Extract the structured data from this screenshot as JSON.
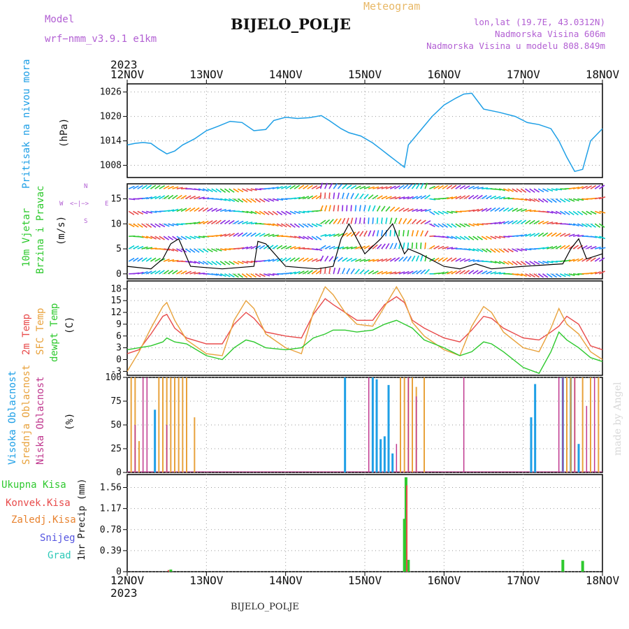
{
  "header": {
    "model_label": "Model",
    "model_name": "wrf−nmm_v3.9.1  e1km",
    "product": "Meteogram",
    "station": "BIJELO_POLJE",
    "lonlat": "lon,lat (19.7E, 43.0312N)",
    "elevation": "Nadmorska Visina 606m",
    "model_elevation": "Nadmorska Visina u modelu 808.849m",
    "watermark": "made by Angel",
    "footer_station": "BIJELO_POLJE"
  },
  "time_axis": {
    "year_top": "2023",
    "year_bottom": "2023",
    "labels": [
      "12NOV",
      "13NOV",
      "14NOV",
      "15NOV",
      "16NOV",
      "17NOV",
      "18NOV"
    ]
  },
  "panel_labels": {
    "pressure": {
      "title": "Pritisak na nivou mora",
      "unit": "(hPa)"
    },
    "wind": {
      "title1": "10m Vjetar",
      "title2": "Brzina i Pravac",
      "unit": "(m/s)",
      "compass_n": "N",
      "compass_s": "S",
      "compass_e": "E",
      "compass_w": "W"
    },
    "temp": {
      "t2m": "2m Temp",
      "sfc": "SFC Temp",
      "dew": "dewpt Temp",
      "unit": "(C)"
    },
    "cloud": {
      "high": "Visoka Oblacnost",
      "mid": "Srednja Oblacnost",
      "low": "Niska Oblacnost",
      "unit": "(%)"
    },
    "precip": {
      "total": "Ukupna Kisa",
      "conv": "Konvek.Kisa",
      "frozen": "Zaledj.Kisa",
      "snow": "Snijeg",
      "hail": "Grad",
      "unit": "1hr Precip (mm)"
    }
  },
  "colors": {
    "pressure": "#1e9fe6",
    "t2m": "#e84b4b",
    "sfc": "#e8a23c",
    "dew": "#2ec92e",
    "high_cloud": "#1e9fe6",
    "mid_cloud": "#e8a23c",
    "low_cloud": "#c0398f",
    "precip_total": "#2ec92e",
    "precip_conv": "#e84b4b",
    "precip_frozen": "#e8822e",
    "snow": "#5454e0",
    "hail": "#2ec9b8",
    "wind_label": "#2ec92e",
    "pressure_label": "#1e9fe6",
    "title_purple": "#b25fd3"
  },
  "chart_data": [
    {
      "type": "line",
      "id": "pressure",
      "ylabel": "Pritisak na nivou mora (hPa)",
      "yticks": [
        "1008",
        "1014",
        "1020",
        "1026"
      ],
      "ylim": [
        1005,
        1028
      ],
      "x_days": [
        0.0,
        0.1,
        0.2,
        0.3,
        0.4,
        0.5,
        0.6,
        0.7,
        0.85,
        1.0,
        1.15,
        1.3,
        1.45,
        1.6,
        1.75,
        1.85,
        2.0,
        2.15,
        2.3,
        2.45,
        2.55,
        2.7,
        2.8,
        2.95,
        3.1,
        3.2,
        3.3,
        3.4,
        3.5,
        3.55,
        3.7,
        3.85,
        4.0,
        4.15,
        4.25,
        4.35,
        4.5,
        4.7,
        4.9,
        5.05,
        5.2,
        5.35,
        5.45,
        5.55,
        5.65,
        5.75,
        5.85,
        6.0
      ],
      "values": [
        1013.0,
        1013.4,
        1013.6,
        1013.4,
        1012.0,
        1010.8,
        1011.5,
        1013.0,
        1014.5,
        1016.5,
        1017.6,
        1018.8,
        1018.5,
        1016.5,
        1016.8,
        1019.0,
        1019.8,
        1019.5,
        1019.7,
        1020.2,
        1019.0,
        1017.0,
        1016.0,
        1015.2,
        1013.5,
        1012.0,
        1010.5,
        1009.0,
        1007.5,
        1013.0,
        1016.5,
        1020.0,
        1022.8,
        1024.5,
        1025.5,
        1025.7,
        1021.8,
        1021.0,
        1020.0,
        1018.5,
        1018.0,
        1017.0,
        1014.0,
        1010.0,
        1006.5,
        1007.0,
        1014.0,
        1017.0
      ]
    },
    {
      "type": "line",
      "id": "wind",
      "ylabel": "10m Vjetar Brzina i Pravac (m/s)",
      "yticks": [
        "0",
        "5",
        "10",
        "15"
      ],
      "ylim": [
        -1,
        18
      ],
      "series": [
        {
          "name": "speed",
          "x": [
            0.0,
            0.3,
            0.45,
            0.55,
            0.65,
            0.8,
            1.2,
            1.6,
            1.65,
            1.75,
            2.0,
            2.4,
            2.6,
            2.7,
            2.8,
            3.0,
            3.2,
            3.35,
            3.5,
            3.55,
            3.7,
            4.0,
            4.2,
            4.4,
            4.6,
            5.0,
            5.5,
            5.6,
            5.7,
            5.8,
            6.0
          ],
          "values": [
            1.5,
            1.0,
            3.0,
            6.0,
            7.0,
            1.5,
            1.0,
            1.5,
            6.5,
            6.0,
            1.5,
            1.0,
            1.5,
            7.0,
            10.0,
            4.0,
            7.0,
            10.0,
            4.0,
            5.0,
            4.0,
            1.5,
            1.0,
            2.0,
            1.0,
            1.5,
            2.0,
            5.0,
            7.0,
            3.0,
            4.0
          ]
        }
      ]
    },
    {
      "type": "line",
      "id": "temperature",
      "ylabel": "(C)",
      "yticks": [
        "-3",
        "0",
        "3",
        "6",
        "9",
        "12",
        "15",
        "18"
      ],
      "ylim": [
        -4,
        20
      ],
      "x": [
        0.0,
        0.15,
        0.3,
        0.45,
        0.5,
        0.6,
        0.75,
        1.0,
        1.2,
        1.35,
        1.5,
        1.6,
        1.75,
        2.0,
        2.2,
        2.35,
        2.5,
        2.6,
        2.75,
        2.9,
        3.1,
        3.25,
        3.4,
        3.5,
        3.6,
        3.75,
        4.0,
        4.2,
        4.35,
        4.5,
        4.6,
        4.75,
        5.0,
        5.2,
        5.35,
        5.45,
        5.55,
        5.7,
        5.85,
        6.0
      ],
      "series": [
        {
          "name": "2m Temp",
          "values": [
            1.5,
            2.5,
            6.5,
            11.0,
            11.5,
            8.0,
            5.5,
            4.0,
            4.0,
            9.0,
            12.0,
            10.5,
            7.0,
            6.0,
            5.5,
            11.5,
            15.5,
            14.0,
            12.0,
            10.0,
            10.0,
            14.0,
            16.0,
            14.5,
            10.0,
            8.0,
            5.5,
            4.5,
            7.5,
            11.0,
            10.5,
            8.0,
            5.5,
            5.0,
            7.0,
            8.5,
            11.0,
            9.0,
            3.5,
            2.5
          ]
        },
        {
          "name": "SFC Temp",
          "values": [
            -3.0,
            2.0,
            8.0,
            13.5,
            14.5,
            10.0,
            5.0,
            1.5,
            1.0,
            10.0,
            15.0,
            13.0,
            6.5,
            3.0,
            1.5,
            12.0,
            18.5,
            16.5,
            12.0,
            9.0,
            8.5,
            13.5,
            18.5,
            15.0,
            9.5,
            6.0,
            2.5,
            1.0,
            8.5,
            13.5,
            12.0,
            7.0,
            3.0,
            2.0,
            8.0,
            13.0,
            9.0,
            6.5,
            2.0,
            0.0
          ]
        },
        {
          "name": "dewpt Temp",
          "values": [
            2.5,
            3.0,
            3.5,
            4.5,
            5.5,
            4.5,
            4.0,
            1.0,
            0.0,
            3.0,
            5.0,
            4.5,
            3.0,
            2.5,
            3.0,
            5.5,
            6.5,
            7.5,
            7.5,
            7.0,
            7.5,
            9.0,
            10.0,
            9.0,
            8.0,
            5.0,
            3.0,
            1.0,
            2.0,
            4.5,
            4.0,
            2.0,
            -2.0,
            -3.5,
            2.0,
            7.0,
            5.0,
            3.0,
            0.5,
            -0.5
          ]
        }
      ]
    },
    {
      "type": "bar",
      "id": "cloud",
      "ylabel": "(%)",
      "yticks": [
        "0",
        "25",
        "50",
        "75",
        "100"
      ],
      "ylim": [
        0,
        100
      ],
      "series": [
        {
          "name": "Visoka Oblacnost",
          "x": [
            0.35,
            2.75,
            3.1,
            3.15,
            3.2,
            3.25,
            3.3,
            3.35,
            5.1,
            5.15,
            5.5,
            5.6,
            5.7
          ],
          "values": [
            66,
            100,
            100,
            98,
            35,
            38,
            92,
            20,
            58,
            93,
            100,
            100,
            30
          ]
        },
        {
          "name": "Srednja Oblacnost",
          "x": [
            0.05,
            0.1,
            0.15,
            0.4,
            0.45,
            0.5,
            0.55,
            0.6,
            0.65,
            0.7,
            0.75,
            0.85,
            3.45,
            3.5,
            3.55,
            3.6,
            3.65,
            3.75,
            5.55,
            5.6,
            5.65,
            5.75,
            5.85,
            5.95
          ],
          "values": [
            100,
            100,
            33,
            100,
            100,
            100,
            100,
            100,
            100,
            100,
            100,
            58,
            100,
            100,
            100,
            100,
            90,
            100,
            100,
            100,
            100,
            100,
            100,
            100
          ]
        },
        {
          "name": "Niska Oblacnost",
          "x": [
            0.1,
            0.2,
            0.25,
            0.5,
            3.05,
            3.4,
            3.55,
            3.65,
            4.25,
            5.45,
            5.5,
            5.65,
            5.8,
            5.9
          ],
          "values": [
            50,
            100,
            100,
            50,
            100,
            30,
            100,
            80,
            100,
            100,
            100,
            100,
            70,
            100
          ]
        }
      ]
    },
    {
      "type": "bar",
      "id": "precip",
      "ylabel": "1hr Precip (mm)",
      "yticks": [
        "0",
        "0.39",
        "0.78",
        "1.17",
        "1.56"
      ],
      "ylim": [
        0,
        1.8
      ],
      "series": [
        {
          "name": "Ukupna Kisa",
          "x": [
            0.55,
            3.5,
            3.52,
            3.55,
            5.5,
            5.75
          ],
          "values": [
            0.04,
            0.98,
            1.75,
            0.22,
            0.22,
            0.2
          ]
        },
        {
          "name": "Konvek.Kisa",
          "x": [
            0.52,
            3.53
          ],
          "values": [
            0.03,
            1.6
          ]
        }
      ]
    }
  ]
}
